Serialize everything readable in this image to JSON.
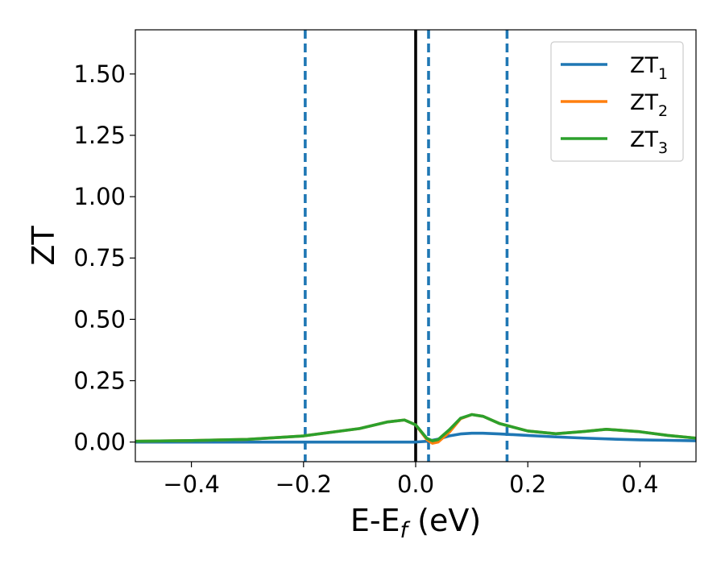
{
  "chart_data": {
    "type": "line",
    "xlabel": {
      "main": "E-E",
      "sub": "f",
      "suffix": " (eV)"
    },
    "ylabel": "ZT",
    "xlim": [
      -0.5,
      0.5
    ],
    "ylim": [
      -0.08,
      1.68
    ],
    "xticks": [
      -0.4,
      -0.2,
      0.0,
      0.2,
      0.4
    ],
    "xtick_labels": [
      "−0.4",
      "−0.2",
      "0.0",
      "0.2",
      "0.4"
    ],
    "yticks": [
      0.0,
      0.25,
      0.5,
      0.75,
      1.0,
      1.25,
      1.5
    ],
    "ytick_labels": [
      "0.00",
      "0.25",
      "0.50",
      "0.75",
      "1.00",
      "1.25",
      "1.50"
    ],
    "grid": false,
    "legend_position": "top-right",
    "vertical_lines": [
      {
        "x": 0.0,
        "style": "solid",
        "color": "#000000"
      },
      {
        "x": -0.197,
        "style": "dashed",
        "color": "#1f77b4"
      },
      {
        "x": 0.023,
        "style": "dashed",
        "color": "#1f77b4"
      },
      {
        "x": 0.163,
        "style": "dashed",
        "color": "#1f77b4"
      }
    ],
    "series": [
      {
        "name": "ZT",
        "sub": "1",
        "color": "#1f77b4",
        "x": [
          -0.5,
          -0.4,
          -0.3,
          -0.2,
          -0.1,
          0.0,
          0.02,
          0.04,
          0.06,
          0.08,
          0.1,
          0.12,
          0.15,
          0.2,
          0.25,
          0.3,
          0.35,
          0.4,
          0.45,
          0.5
        ],
        "y": [
          0.0,
          0.0,
          0.0,
          0.0,
          0.0,
          0.0,
          0.003,
          0.012,
          0.025,
          0.033,
          0.036,
          0.036,
          0.033,
          0.027,
          0.021,
          0.016,
          0.012,
          0.009,
          0.007,
          0.005
        ]
      },
      {
        "name": "ZT",
        "sub": "2",
        "color": "#ff7f0e",
        "x": [
          -0.5,
          -0.4,
          -0.3,
          -0.2,
          -0.1,
          -0.05,
          -0.02,
          0.0,
          0.02,
          0.03,
          0.04,
          0.06,
          0.08,
          0.1,
          0.12,
          0.15,
          0.2,
          0.25,
          0.3,
          0.34,
          0.4,
          0.45,
          0.5
        ],
        "y": [
          0.003,
          0.006,
          0.011,
          0.025,
          0.055,
          0.082,
          0.09,
          0.07,
          0.01,
          -0.005,
          0.0,
          0.04,
          0.095,
          0.112,
          0.105,
          0.075,
          0.045,
          0.034,
          0.043,
          0.052,
          0.042,
          0.027,
          0.016
        ]
      },
      {
        "name": "ZT",
        "sub": "3",
        "color": "#2ca02c",
        "x": [
          -0.5,
          -0.4,
          -0.3,
          -0.2,
          -0.1,
          -0.05,
          -0.02,
          0.0,
          0.02,
          0.03,
          0.04,
          0.06,
          0.08,
          0.1,
          0.12,
          0.15,
          0.2,
          0.25,
          0.3,
          0.34,
          0.4,
          0.45,
          0.5
        ],
        "y": [
          0.003,
          0.006,
          0.011,
          0.025,
          0.055,
          0.082,
          0.09,
          0.07,
          0.015,
          0.005,
          0.01,
          0.05,
          0.097,
          0.112,
          0.105,
          0.075,
          0.045,
          0.034,
          0.043,
          0.052,
          0.042,
          0.027,
          0.016
        ]
      }
    ]
  }
}
